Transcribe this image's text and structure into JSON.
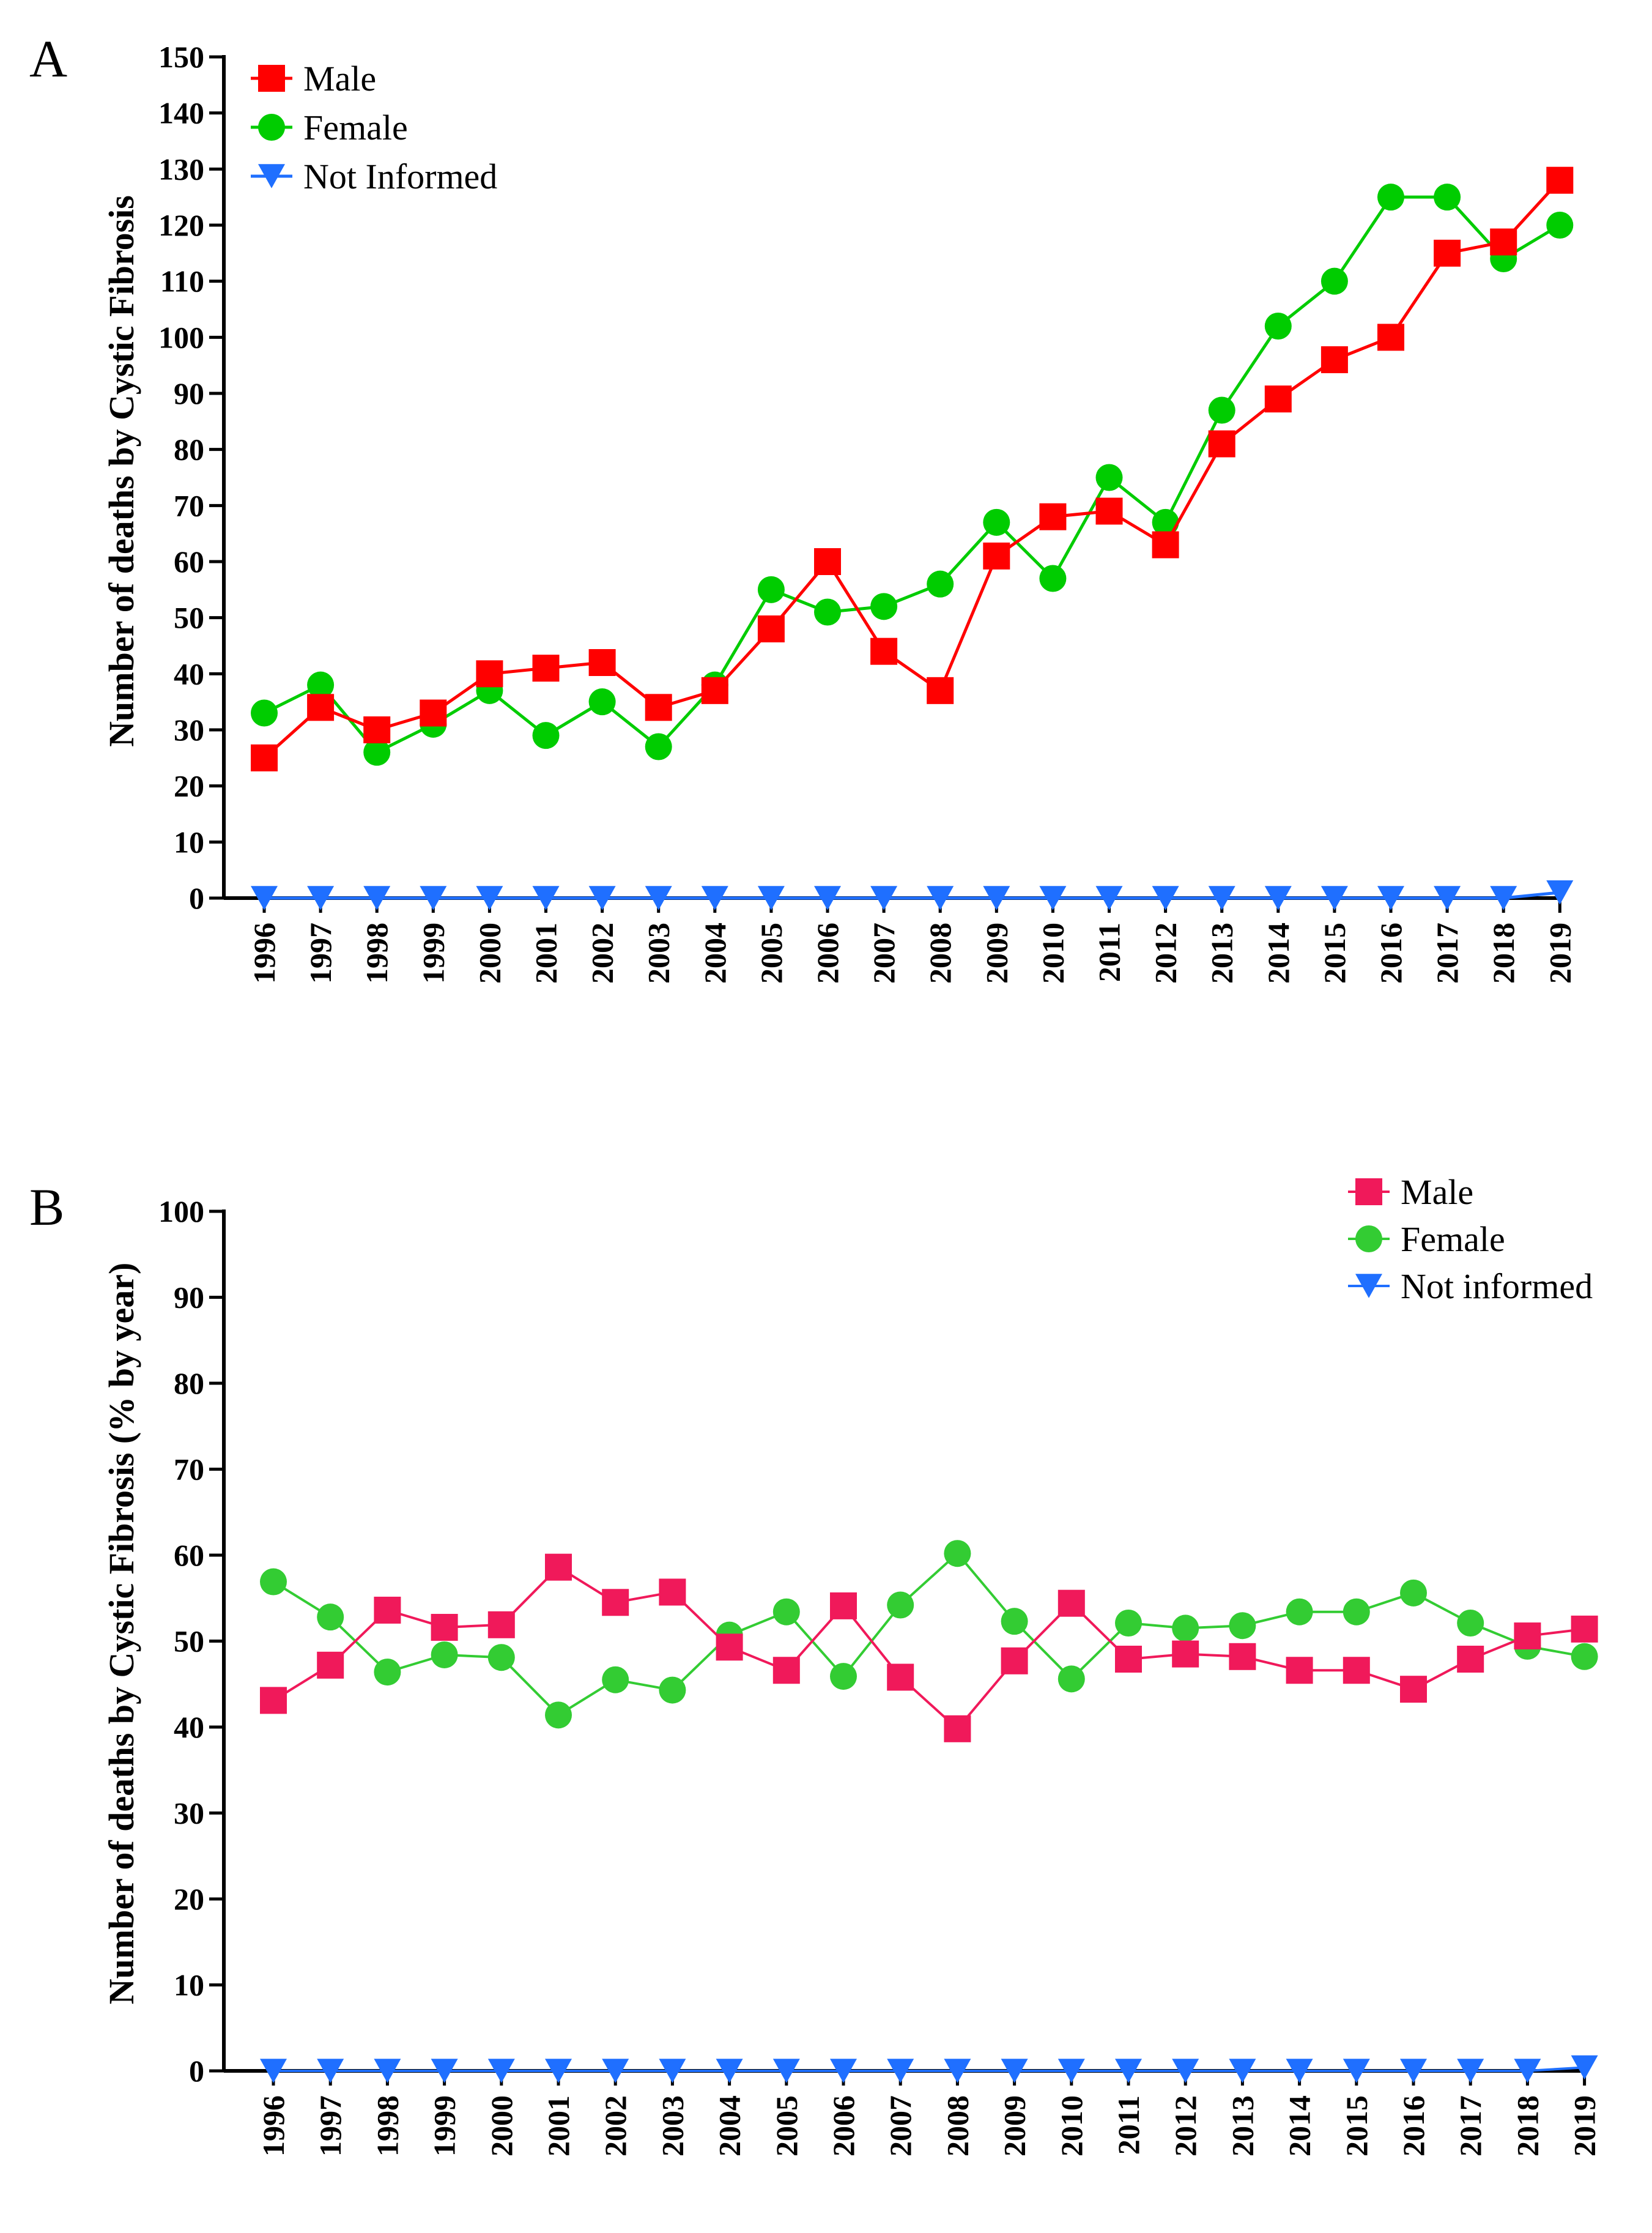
{
  "chart_data": [
    {
      "panel": "A",
      "type": "line",
      "title": "",
      "xlabel": "",
      "ylabel": "Number of deaths by Cystic Fibrosis",
      "ylim": [
        0,
        150
      ],
      "yticks": [
        0,
        10,
        20,
        30,
        40,
        50,
        60,
        70,
        80,
        90,
        100,
        110,
        120,
        130,
        140,
        150
      ],
      "categories": [
        "1996",
        "1997",
        "1998",
        "1999",
        "2000",
        "2001",
        "2002",
        "2003",
        "2004",
        "2005",
        "2006",
        "2007",
        "2008",
        "2009",
        "2010",
        "2011",
        "2012",
        "2013",
        "2014",
        "2015",
        "2016",
        "2017",
        "2018",
        "2019"
      ],
      "legend_position": "top-left",
      "grid": false,
      "series": [
        {
          "name": "Male",
          "color": "#ff0000",
          "marker": "square",
          "values": [
            25,
            34,
            30,
            33,
            40,
            41,
            42,
            34,
            37,
            48,
            60,
            44,
            37,
            61,
            68,
            69,
            63,
            81,
            89,
            96,
            100,
            115,
            117,
            128
          ]
        },
        {
          "name": "Female",
          "color": "#00cc00",
          "marker": "circle",
          "values": [
            33,
            38,
            26,
            31,
            37,
            29,
            35,
            27,
            38,
            55,
            51,
            52,
            56,
            67,
            57,
            75,
            67,
            87,
            102,
            110,
            125,
            125,
            114,
            120
          ]
        },
        {
          "name": "Not Informed",
          "color": "#1f6fff",
          "marker": "triangle-down",
          "values": [
            0,
            0,
            0,
            0,
            0,
            0,
            0,
            0,
            0,
            0,
            0,
            0,
            0,
            0,
            0,
            0,
            0,
            0,
            0,
            0,
            0,
            0,
            0,
            1
          ]
        }
      ]
    },
    {
      "panel": "B",
      "type": "line",
      "title": "",
      "xlabel": "",
      "ylabel": "Number of deaths by Cystic Fibrosis (% by year)",
      "ylim": [
        0,
        100
      ],
      "yticks": [
        0,
        10,
        20,
        30,
        40,
        50,
        60,
        70,
        80,
        90,
        100
      ],
      "categories": [
        "1996",
        "1997",
        "1998",
        "1999",
        "2000",
        "2001",
        "2002",
        "2003",
        "2004",
        "2005",
        "2006",
        "2007",
        "2008",
        "2009",
        "2010",
        "2011",
        "2012",
        "2013",
        "2014",
        "2015",
        "2016",
        "2017",
        "2018",
        "2019"
      ],
      "legend_position": "top-right",
      "grid": false,
      "series": [
        {
          "name": "Male",
          "color": "#f0195a",
          "marker": "square",
          "values": [
            43.1,
            47.2,
            53.6,
            51.6,
            51.9,
            58.6,
            54.5,
            55.7,
            49.3,
            46.6,
            54.1,
            45.8,
            39.8,
            47.7,
            54.4,
            47.9,
            48.5,
            48.2,
            46.6,
            46.6,
            44.4,
            47.9,
            50.6,
            51.4
          ]
        },
        {
          "name": "Female",
          "color": "#33cc33",
          "marker": "circle",
          "values": [
            56.9,
            52.8,
            46.4,
            48.4,
            48.1,
            41.4,
            45.5,
            44.3,
            50.7,
            53.4,
            45.9,
            54.2,
            60.2,
            52.3,
            45.6,
            52.1,
            51.5,
            51.8,
            53.4,
            53.4,
            55.6,
            52.1,
            49.4,
            48.2
          ]
        },
        {
          "name": "Not informed",
          "color": "#1f6fff",
          "marker": "triangle-down",
          "values": [
            0,
            0,
            0,
            0,
            0,
            0,
            0,
            0,
            0,
            0,
            0,
            0,
            0,
            0,
            0,
            0,
            0,
            0,
            0,
            0,
            0,
            0,
            0,
            0.4
          ]
        }
      ]
    }
  ]
}
